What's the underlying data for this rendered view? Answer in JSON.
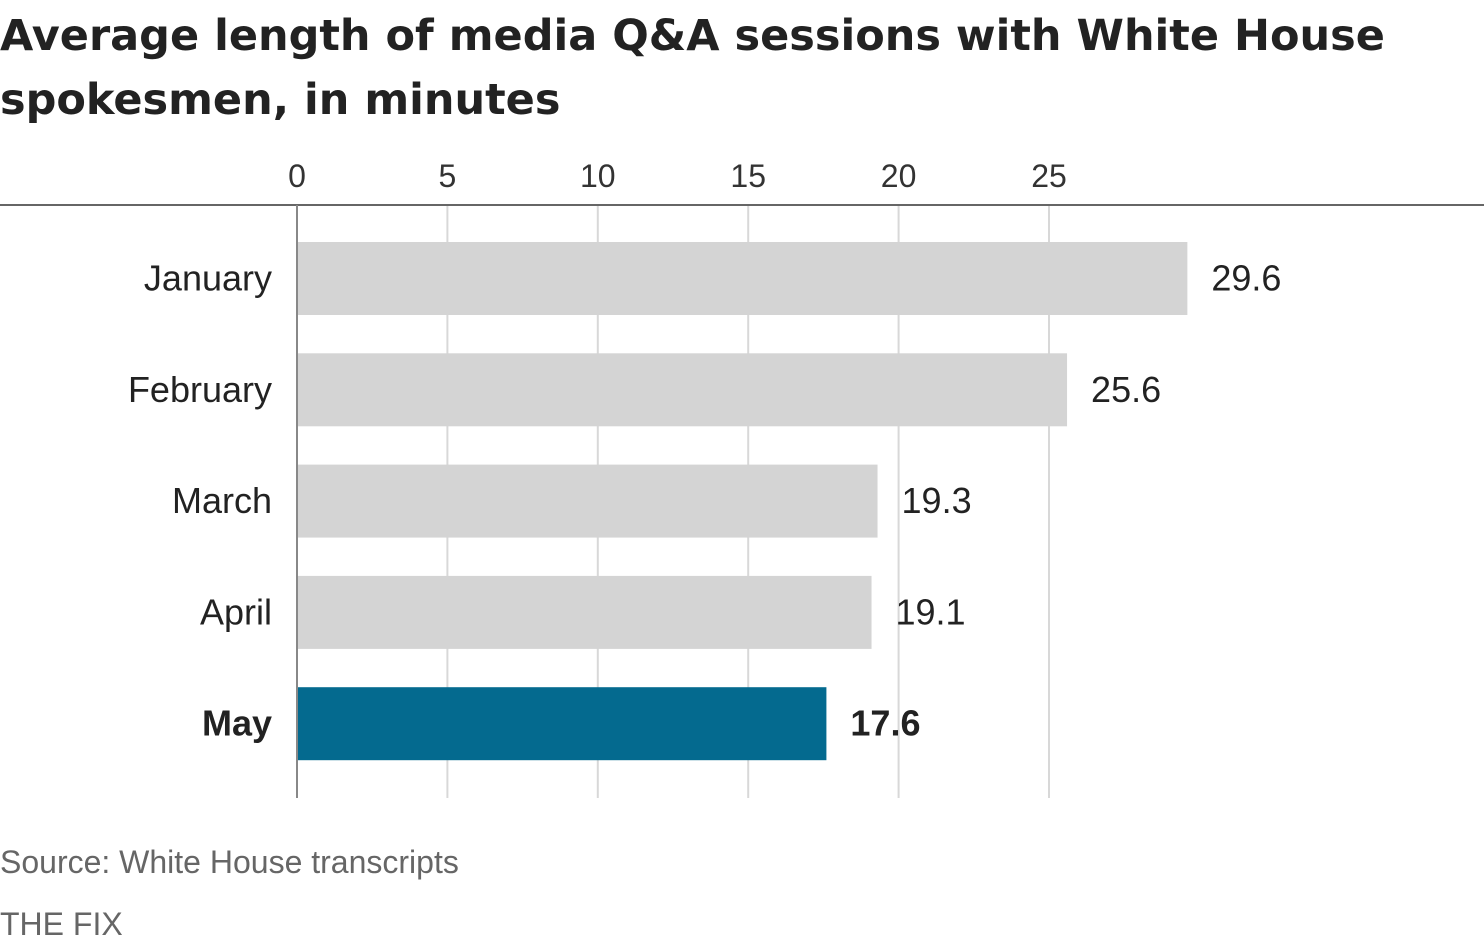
{
  "chart_data": {
    "type": "bar",
    "orientation": "horizontal",
    "title": "Average length of media Q&A sessions with White House spokesmen, in minutes",
    "categories": [
      "January",
      "February",
      "March",
      "April",
      "May"
    ],
    "values": [
      29.6,
      25.6,
      19.3,
      19.1,
      17.6
    ],
    "value_labels": [
      "29.6",
      "25.6",
      "19.3",
      "19.1",
      "17.6"
    ],
    "x_ticks": [
      0,
      5,
      10,
      15,
      20,
      25
    ],
    "xlim": [
      0,
      30
    ],
    "highlight_index": 4,
    "grid": true,
    "axis_position": "top",
    "colors": {
      "bar": "#d4d4d4",
      "highlight": "#046a8f",
      "grid": "#d8d8d8",
      "axis": "#666666"
    }
  },
  "footer": {
    "source": "Source: White House transcripts",
    "brand": "THE FIX"
  }
}
